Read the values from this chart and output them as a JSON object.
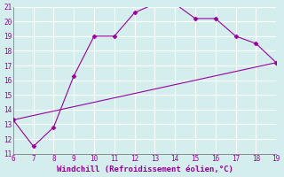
{
  "xlabel": "Windchill (Refroidissement éolien,°C)",
  "xlim": [
    6,
    19
  ],
  "ylim": [
    11,
    21
  ],
  "xticks": [
    6,
    7,
    8,
    9,
    10,
    11,
    12,
    13,
    14,
    15,
    16,
    17,
    18,
    19
  ],
  "yticks": [
    11,
    12,
    13,
    14,
    15,
    16,
    17,
    18,
    19,
    20,
    21
  ],
  "bg_color": "#d4eeee",
  "grid_color": "#b8dada",
  "line_color": "#990099",
  "curve_x": [
    6,
    7,
    8,
    9,
    10,
    11,
    12,
    13,
    14,
    15,
    16,
    17,
    18,
    19
  ],
  "curve_y": [
    13.3,
    11.5,
    12.8,
    16.3,
    19.0,
    19.0,
    20.6,
    21.2,
    21.2,
    20.2,
    20.2,
    19.0,
    18.5,
    17.2
  ],
  "line_x": [
    6,
    19
  ],
  "line_y": [
    13.3,
    17.2
  ],
  "marker_size": 2.5
}
